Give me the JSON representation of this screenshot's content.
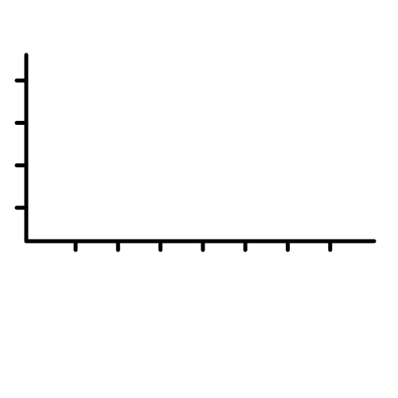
{
  "chart_data": {
    "type": "line",
    "title": "",
    "xlabel": "",
    "ylabel": "",
    "x_tick_count": 7,
    "y_tick_count": 4,
    "series": [],
    "grid": false,
    "legend": "none",
    "axis_color": "#000000",
    "background": "#ffffff"
  }
}
